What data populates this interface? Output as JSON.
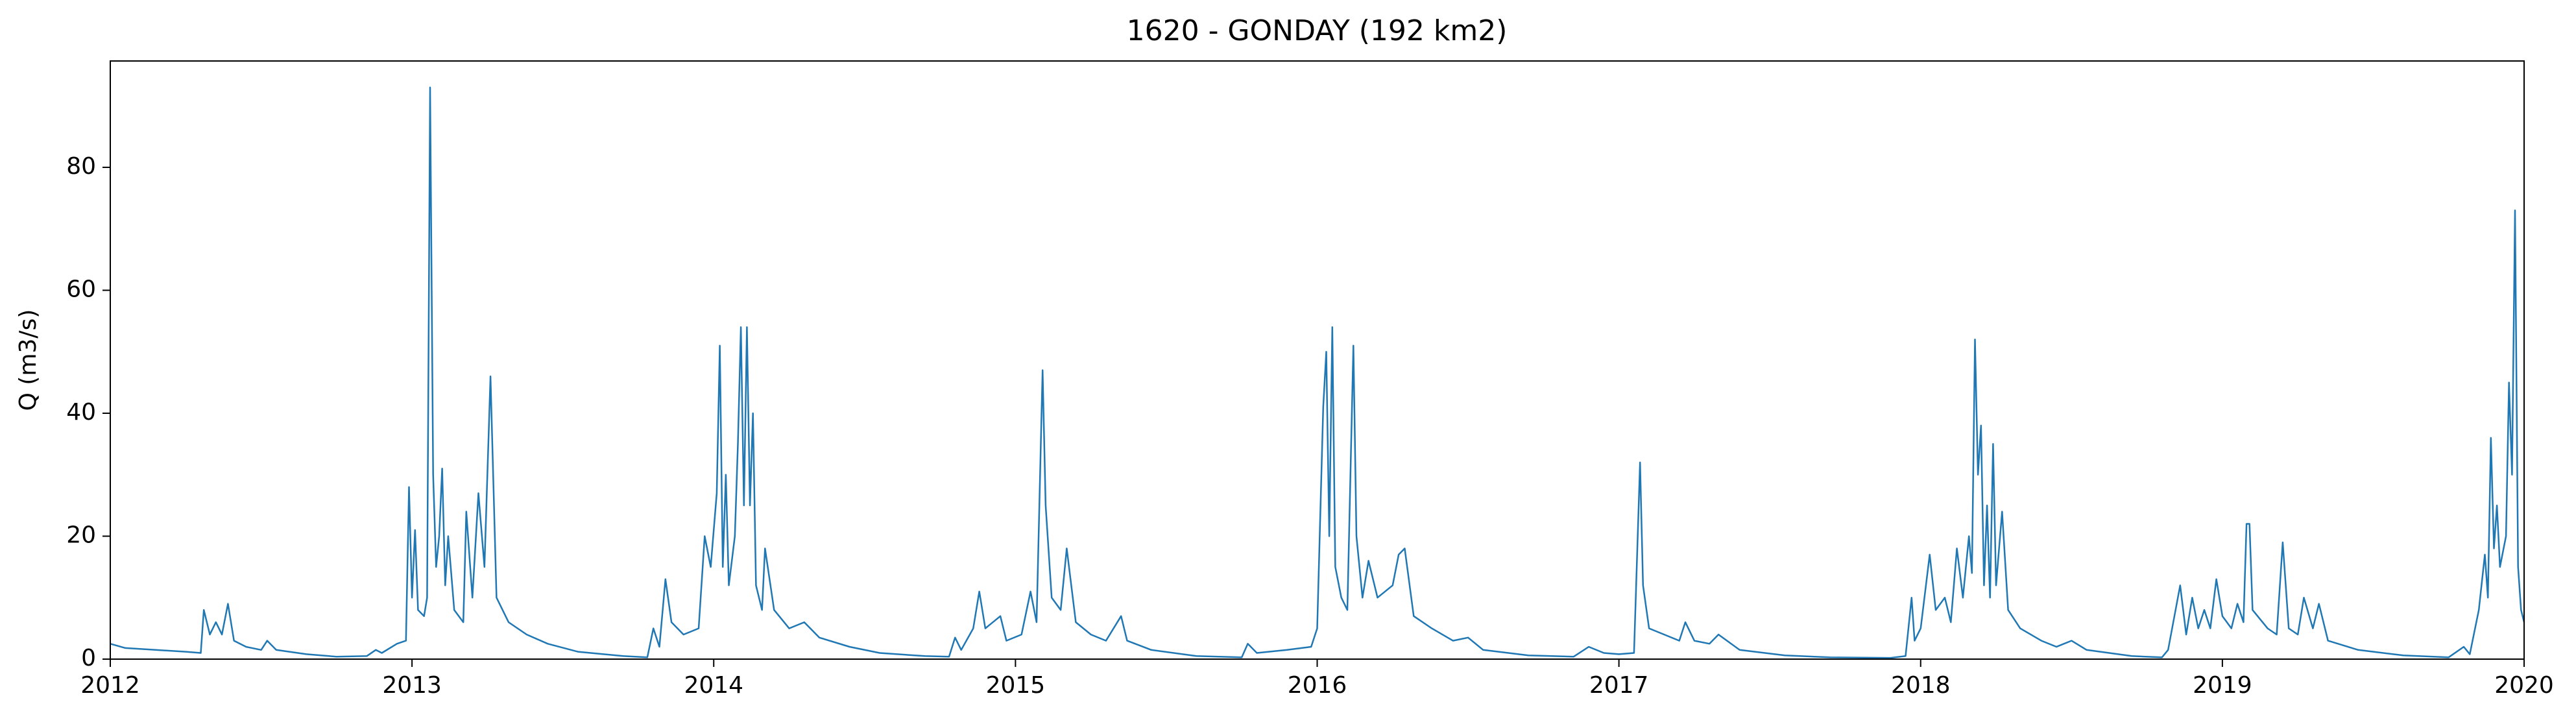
{
  "chart_data": {
    "type": "line",
    "title": "1620 - GONDAY (192 km2)",
    "y_label": "Q (m3/s)",
    "color": "#1f77b4",
    "xlim": [
      2012,
      2020
    ],
    "xticks": [
      2012,
      2013,
      2014,
      2015,
      2016,
      2017,
      2018,
      2019,
      2020
    ],
    "ylim": [
      0,
      97.3
    ],
    "yticks": [
      0,
      20,
      40,
      60,
      80
    ],
    "x": [
      2012.0,
      2012.05,
      2012.15,
      2012.25,
      2012.3,
      2012.31,
      2012.33,
      2012.35,
      2012.37,
      2012.39,
      2012.41,
      2012.45,
      2012.5,
      2012.52,
      2012.55,
      2012.65,
      2012.75,
      2012.85,
      2012.88,
      2012.9,
      2012.95,
      2012.98,
      2012.99,
      2013.0,
      2013.01,
      2013.02,
      2013.04,
      2013.05,
      2013.06,
      2013.07,
      2013.08,
      2013.09,
      2013.1,
      2013.11,
      2013.12,
      2013.14,
      2013.17,
      2013.18,
      2013.2,
      2013.22,
      2013.24,
      2013.26,
      2013.28,
      2013.32,
      2013.38,
      2013.45,
      2013.55,
      2013.7,
      2013.78,
      2013.8,
      2013.82,
      2013.84,
      2013.86,
      2013.9,
      2013.95,
      2013.97,
      2013.99,
      2014.01,
      2014.02,
      2014.03,
      2014.04,
      2014.05,
      2014.07,
      2014.08,
      2014.09,
      2014.1,
      2014.11,
      2014.12,
      2014.13,
      2014.14,
      2014.16,
      2014.17,
      2014.2,
      2014.25,
      2014.3,
      2014.35,
      2014.45,
      2014.55,
      2014.7,
      2014.78,
      2014.8,
      2014.82,
      2014.86,
      2014.88,
      2014.9,
      2014.95,
      2014.97,
      2015.02,
      2015.05,
      2015.07,
      2015.09,
      2015.1,
      2015.12,
      2015.15,
      2015.17,
      2015.2,
      2015.25,
      2015.3,
      2015.35,
      2015.37,
      2015.45,
      2015.6,
      2015.75,
      2015.77,
      2015.8,
      2015.9,
      2015.98,
      2016.0,
      2016.02,
      2016.03,
      2016.04,
      2016.05,
      2016.06,
      2016.08,
      2016.1,
      2016.12,
      2016.13,
      2016.15,
      2016.17,
      2016.2,
      2016.25,
      2016.27,
      2016.29,
      2016.32,
      2016.38,
      2016.45,
      2016.5,
      2016.55,
      2016.7,
      2016.85,
      2016.9,
      2016.95,
      2017.0,
      2017.05,
      2017.07,
      2017.08,
      2017.1,
      2017.15,
      2017.2,
      2017.22,
      2017.25,
      2017.3,
      2017.33,
      2017.4,
      2017.55,
      2017.7,
      2017.9,
      2017.95,
      2017.97,
      2017.98,
      2018.0,
      2018.03,
      2018.05,
      2018.08,
      2018.1,
      2018.12,
      2018.14,
      2018.16,
      2018.17,
      2018.18,
      2018.19,
      2018.2,
      2018.21,
      2018.22,
      2018.23,
      2018.24,
      2018.25,
      2018.27,
      2018.29,
      2018.33,
      2018.4,
      2018.45,
      2018.5,
      2018.55,
      2018.7,
      2018.8,
      2018.82,
      2018.86,
      2018.88,
      2018.9,
      2018.92,
      2018.94,
      2018.96,
      2018.98,
      2019.0,
      2019.03,
      2019.05,
      2019.07,
      2019.08,
      2019.09,
      2019.1,
      2019.15,
      2019.18,
      2019.2,
      2019.22,
      2019.25,
      2019.27,
      2019.3,
      2019.32,
      2019.35,
      2019.45,
      2019.6,
      2019.75,
      2019.8,
      2019.82,
      2019.85,
      2019.87,
      2019.88,
      2019.89,
      2019.9,
      2019.91,
      2019.92,
      2019.94,
      2019.95,
      2019.96,
      2019.97,
      2019.98,
      2019.99,
      2020.0
    ],
    "values": [
      2.5,
      1.8,
      1.5,
      1.2,
      1.0,
      8,
      4,
      6,
      4,
      9,
      3,
      2,
      1.5,
      3,
      1.5,
      0.8,
      0.4,
      0.5,
      1.5,
      1,
      2.5,
      3,
      28,
      10,
      21,
      8,
      7,
      10,
      93,
      30,
      15,
      20,
      31,
      12,
      20,
      8,
      6,
      24,
      10,
      27,
      15,
      46,
      10,
      6,
      4,
      2.5,
      1.2,
      0.5,
      0.3,
      5,
      2,
      13,
      6,
      4,
      5,
      20,
      15,
      27,
      51,
      15,
      30,
      12,
      20,
      35,
      54,
      25,
      54,
      25,
      40,
      12,
      8,
      18,
      8,
      5,
      6,
      3.5,
      2,
      1,
      0.5,
      0.4,
      3.5,
      1.5,
      5,
      11,
      5,
      7,
      3,
      4,
      11,
      6,
      47,
      25,
      10,
      8,
      18,
      6,
      4,
      3,
      7,
      3,
      1.5,
      0.5,
      0.3,
      2.5,
      1,
      1.5,
      2,
      5,
      41,
      50,
      20,
      54,
      15,
      10,
      8,
      51,
      20,
      10,
      16,
      10,
      12,
      17,
      18,
      7,
      5,
      3,
      3.5,
      1.5,
      0.6,
      0.4,
      2,
      1,
      0.8,
      1,
      32,
      12,
      5,
      4,
      3,
      6,
      3,
      2.5,
      4,
      1.5,
      0.6,
      0.3,
      0.2,
      0.5,
      10,
      3,
      5,
      17,
      8,
      10,
      6,
      18,
      10,
      20,
      14,
      52,
      30,
      38,
      12,
      25,
      10,
      35,
      12,
      24,
      8,
      5,
      3,
      2,
      3,
      1.5,
      0.5,
      0.3,
      1.5,
      12,
      4,
      10,
      5,
      8,
      5,
      13,
      7,
      5,
      9,
      6,
      22,
      22,
      8,
      5,
      4,
      19,
      5,
      4,
      10,
      5,
      9,
      3,
      1.5,
      0.6,
      0.3,
      2,
      0.8,
      8,
      17,
      10,
      36,
      18,
      25,
      15,
      20,
      45,
      30,
      73,
      15,
      8,
      6
    ]
  }
}
